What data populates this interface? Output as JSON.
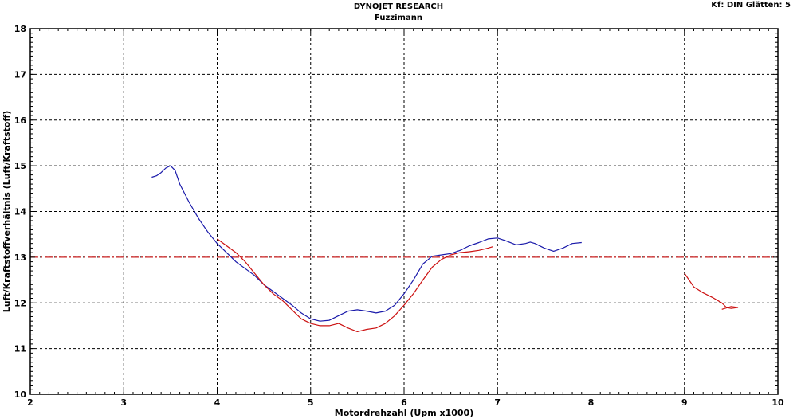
{
  "header": {
    "title": "DYNOJET RESEARCH",
    "subtitle": "Fuzzimann",
    "corner_info": "Kf: DIN  Glätten: 5"
  },
  "chart_data": {
    "type": "line",
    "title": "DYNOJET RESEARCH",
    "subtitle": "Fuzzimann",
    "xlabel": "Motordrehzahl (Upm x1000)",
    "ylabel": "Luft/Kraftstoffverhältnis (Luft/Kraftstoff)",
    "xlim": [
      2,
      10
    ],
    "ylim": [
      10,
      18
    ],
    "xticks": [
      "2",
      "3",
      "4",
      "5",
      "6",
      "7",
      "8",
      "9",
      "10"
    ],
    "yticks": [
      "10",
      "11",
      "12",
      "13",
      "14",
      "15",
      "16",
      "17",
      "18"
    ],
    "grid": true,
    "reference_line": {
      "y": 13.0,
      "color": "#cc2222",
      "style": "dash-dot"
    },
    "series": [
      {
        "color": "#1a1aaa",
        "segments": [
          [
            [
              3.3,
              14.75
            ],
            [
              3.35,
              14.78
            ],
            [
              3.4,
              14.85
            ],
            [
              3.45,
              14.95
            ],
            [
              3.5,
              15.0
            ],
            [
              3.55,
              14.9
            ],
            [
              3.6,
              14.6
            ],
            [
              3.7,
              14.2
            ],
            [
              3.8,
              13.85
            ],
            [
              3.9,
              13.55
            ],
            [
              4.0,
              13.3
            ],
            [
              4.1,
              13.1
            ],
            [
              4.2,
              12.9
            ],
            [
              4.3,
              12.75
            ],
            [
              4.4,
              12.6
            ],
            [
              4.5,
              12.4
            ],
            [
              4.6,
              12.25
            ],
            [
              4.7,
              12.1
            ],
            [
              4.8,
              11.95
            ],
            [
              4.9,
              11.78
            ],
            [
              5.0,
              11.65
            ],
            [
              5.1,
              11.6
            ],
            [
              5.2,
              11.62
            ],
            [
              5.3,
              11.72
            ],
            [
              5.4,
              11.82
            ],
            [
              5.5,
              11.85
            ],
            [
              5.6,
              11.82
            ],
            [
              5.7,
              11.78
            ],
            [
              5.8,
              11.82
            ],
            [
              5.9,
              11.95
            ],
            [
              6.0,
              12.2
            ],
            [
              6.1,
              12.5
            ],
            [
              6.2,
              12.85
            ],
            [
              6.3,
              13.02
            ],
            [
              6.4,
              13.05
            ],
            [
              6.5,
              13.08
            ],
            [
              6.6,
              13.15
            ],
            [
              6.7,
              13.25
            ],
            [
              6.8,
              13.32
            ],
            [
              6.9,
              13.4
            ],
            [
              7.0,
              13.42
            ],
            [
              7.1,
              13.35
            ],
            [
              7.2,
              13.27
            ],
            [
              7.3,
              13.3
            ],
            [
              7.35,
              13.33
            ],
            [
              7.4,
              13.3
            ],
            [
              7.5,
              13.2
            ],
            [
              7.6,
              13.13
            ],
            [
              7.7,
              13.2
            ],
            [
              7.8,
              13.3
            ],
            [
              7.9,
              13.32
            ]
          ]
        ]
      },
      {
        "color": "#cc1111",
        "segments": [
          [
            [
              4.0,
              13.4
            ],
            [
              4.1,
              13.25
            ],
            [
              4.2,
              13.1
            ],
            [
              4.3,
              12.9
            ],
            [
              4.4,
              12.65
            ],
            [
              4.5,
              12.4
            ],
            [
              4.6,
              12.2
            ],
            [
              4.7,
              12.05
            ],
            [
              4.8,
              11.85
            ],
            [
              4.9,
              11.65
            ],
            [
              5.0,
              11.55
            ],
            [
              5.1,
              11.5
            ],
            [
              5.2,
              11.5
            ],
            [
              5.3,
              11.55
            ],
            [
              5.4,
              11.45
            ],
            [
              5.5,
              11.37
            ],
            [
              5.6,
              11.42
            ],
            [
              5.7,
              11.45
            ],
            [
              5.8,
              11.55
            ],
            [
              5.9,
              11.72
            ],
            [
              6.0,
              11.95
            ],
            [
              6.1,
              12.2
            ],
            [
              6.2,
              12.5
            ],
            [
              6.3,
              12.78
            ],
            [
              6.4,
              12.95
            ],
            [
              6.5,
              13.05
            ],
            [
              6.6,
              13.1
            ],
            [
              6.7,
              13.12
            ],
            [
              6.8,
              13.15
            ],
            [
              6.9,
              13.2
            ],
            [
              6.95,
              13.23
            ]
          ],
          [
            [
              9.0,
              12.65
            ],
            [
              9.05,
              12.5
            ],
            [
              9.1,
              12.35
            ],
            [
              9.2,
              12.22
            ],
            [
              9.3,
              12.12
            ],
            [
              9.4,
              12.0
            ],
            [
              9.45,
              11.9
            ],
            [
              9.5,
              11.88
            ],
            [
              9.57,
              11.9
            ],
            [
              9.5,
              11.92
            ],
            [
              9.4,
              11.86
            ]
          ]
        ]
      }
    ]
  }
}
